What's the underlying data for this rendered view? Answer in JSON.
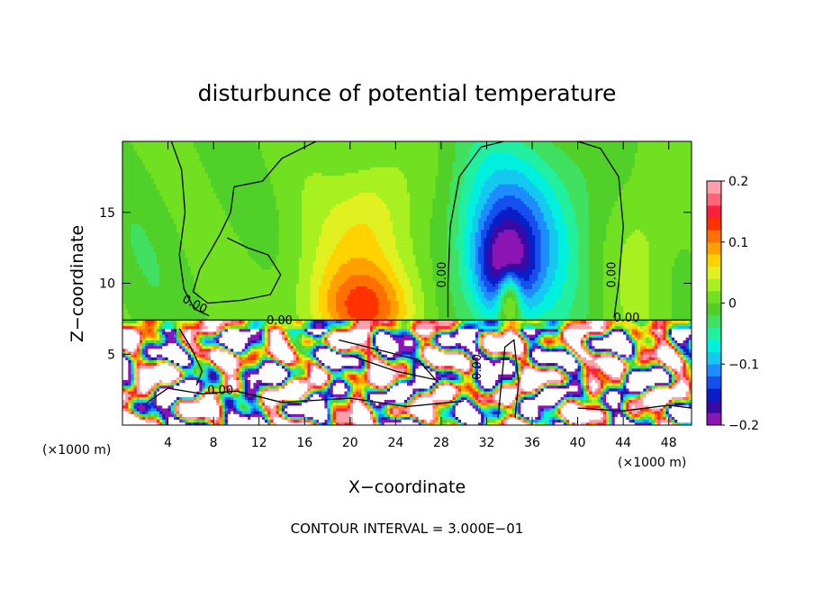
{
  "chart_data": {
    "type": "heatmap",
    "title": "disturbunce of potential temperature",
    "xlabel": "X−coordinate",
    "ylabel": "Z−coordinate",
    "x_unit": "(×1000 m)",
    "x_unit_right": "(×1000 m)",
    "xlim": [
      0,
      50
    ],
    "ylim": [
      0,
      20
    ],
    "x_ticks": [
      4,
      8,
      12,
      16,
      20,
      24,
      28,
      32,
      36,
      40,
      44,
      48
    ],
    "y_ticks": [
      5,
      10,
      15
    ],
    "colorbar": {
      "range": [
        -0.2,
        0.2
      ],
      "ticks": [
        {
          "value": 0.2,
          "label": "0.2"
        },
        {
          "value": 0.1,
          "label": "0.1"
        },
        {
          "value": 0.0,
          "label": "0"
        },
        {
          "value": -0.1,
          "label": "−0.1"
        },
        {
          "value": -0.2,
          "label": "−0.2"
        }
      ],
      "colors": [
        "#8a14b4",
        "#3a0aa6",
        "#0a1ec8",
        "#1450f0",
        "#1e8cff",
        "#14c8f0",
        "#00f0e0",
        "#20f0a0",
        "#40e060",
        "#50d028",
        "#70e020",
        "#a8f020",
        "#e0f020",
        "#ffd200",
        "#ffa000",
        "#ff7000",
        "#ff3200",
        "#ff1e3c",
        "#ff6478",
        "#ffa0aa"
      ]
    },
    "contour_labels": [
      {
        "text": "0.00",
        "x": 6.2,
        "z": 8.3,
        "angle": 28
      },
      {
        "text": "0.00",
        "x": 13.8,
        "z": 7.1,
        "angle": 0
      },
      {
        "text": "0.00",
        "x": 28.4,
        "z": 10.6,
        "angle": -90
      },
      {
        "text": "0.00",
        "x": 43.3,
        "z": 10.6,
        "angle": -90
      },
      {
        "text": "0.00",
        "x": 44.3,
        "z": 7.3,
        "angle": 0
      },
      {
        "text": "0.00",
        "x": 8.6,
        "z": 2.2,
        "angle": 0
      },
      {
        "text": "0.00",
        "x": 31.5,
        "z": 4.1,
        "angle": -90
      }
    ],
    "blobs": [
      {
        "x": 25,
        "z": 13,
        "rx": 8,
        "rz": 7,
        "v": 0.03
      },
      {
        "x": 21,
        "z": 9,
        "rx": 6,
        "rz": 5,
        "v": 0.05
      },
      {
        "x": 21,
        "z": 8.2,
        "rx": 4,
        "rz": 2.5,
        "v": 0.06
      },
      {
        "x": 22,
        "z": 15.5,
        "rx": 3,
        "rz": 3.5,
        "v": 0.03
      },
      {
        "x": 34,
        "z": 13.5,
        "rx": 6.5,
        "rz": 6.5,
        "v": -0.12
      },
      {
        "x": 33.5,
        "z": 11,
        "rx": 2.5,
        "rz": 3.5,
        "v": -0.12
      },
      {
        "x": 34,
        "z": 9,
        "rx": 1,
        "rz": 2,
        "v": 0.15
      },
      {
        "x": 45.5,
        "z": 13,
        "rx": 3,
        "rz": 6,
        "v": 0.035
      },
      {
        "x": 2,
        "z": 12,
        "rx": 4,
        "rz": 6,
        "v": -0.01
      }
    ],
    "footnote": "CONTOUR INTERVAL = 3.000E−01"
  }
}
